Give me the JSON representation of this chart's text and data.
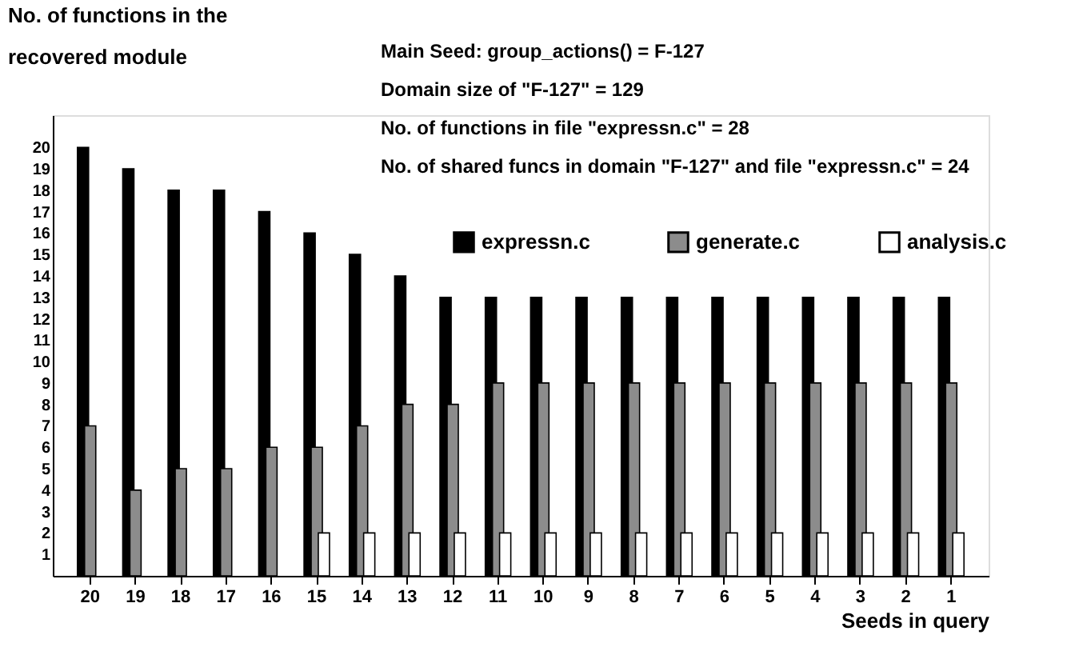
{
  "chart_data": {
    "type": "bar",
    "ylabel": "No. of functions in the recovered module",
    "xlabel": "Seeds in query",
    "annotations": [
      "Main Seed: group_actions() = F-127",
      "Domain size of \"F-127\" = 129",
      "No. of functions in file \"expressn.c\" = 28",
      "No. of shared funcs in domain \"F-127\" and file \"expressn.c\" = 24"
    ],
    "categories": [
      "20",
      "19",
      "18",
      "17",
      "16",
      "15",
      "14",
      "13",
      "12",
      "11",
      "10",
      "9",
      "8",
      "7",
      "6",
      "5",
      "4",
      "3",
      "2",
      "1"
    ],
    "series": [
      {
        "name": "expressn.c",
        "color": "#000000",
        "values": [
          20,
          19,
          18,
          18,
          17,
          16,
          15,
          14,
          13,
          13,
          13,
          13,
          13,
          13,
          13,
          13,
          13,
          13,
          13,
          13
        ]
      },
      {
        "name": "generate.c",
        "color": "#8c8c8c",
        "values": [
          7,
          4,
          5,
          5,
          6,
          6,
          7,
          8,
          8,
          9,
          9,
          9,
          9,
          9,
          9,
          9,
          9,
          9,
          9,
          9
        ]
      },
      {
        "name": "analysis.c",
        "color": "#ffffff",
        "values": [
          null,
          null,
          null,
          null,
          null,
          2,
          2,
          2,
          2,
          2,
          2,
          2,
          2,
          2,
          2,
          2,
          2,
          2,
          2,
          2
        ]
      }
    ],
    "ylim": [
      0,
      21.5
    ],
    "yticks": [
      1,
      2,
      3,
      4,
      5,
      6,
      7,
      8,
      9,
      10,
      11,
      12,
      13,
      14,
      15,
      16,
      17,
      18,
      19,
      20
    ],
    "legend": "top right",
    "grid": false
  }
}
